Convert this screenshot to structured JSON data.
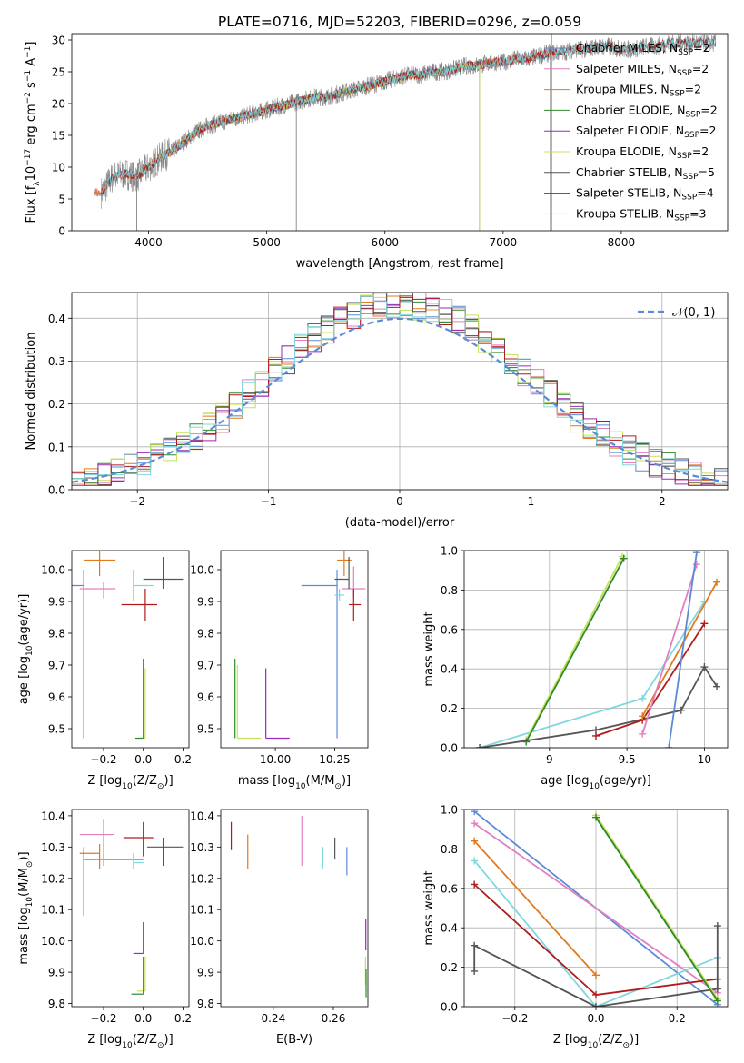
{
  "title": "PLATE=0716, MJD=52203, FIBERID=0296, z=0.059",
  "colors": {
    "chabrier_miles": "#5b8bd8",
    "salpeter_miles": "#e27fc0",
    "kroupa_miles": "#e07a1f",
    "chabrier_elodie": "#2d8a2d",
    "salpeter_elodie": "#9a2ab8",
    "kroupa_elodie": "#c8e05a",
    "chabrier_stelib": "#555555",
    "salpeter_stelib": "#b01c1c",
    "kroupa_stelib": "#7fd8de",
    "normal_curve": "#5b8bd8",
    "data_spectrum": "#888888"
  },
  "chart_data": [
    {
      "id": "spectrum",
      "type": "line",
      "xlabel": "wavelength [Angstrom, rest frame]",
      "ylabel_parts": [
        "Flux [f",
        "λ",
        "10",
        "−17",
        " erg cm",
        "−2",
        " s",
        "−1",
        " A",
        "−1",
        "]"
      ],
      "xlim": [
        3350,
        8900
      ],
      "ylim": [
        0,
        31
      ],
      "xticks": [
        4000,
        5000,
        6000,
        7000,
        8000
      ],
      "yticks": [
        0,
        5,
        10,
        15,
        20,
        25,
        30
      ],
      "continuum_x": [
        3600,
        3700,
        3800,
        3900,
        4000,
        4100,
        4200,
        4300,
        4400,
        4500,
        4600,
        4700,
        4800,
        4900,
        5000,
        5100,
        5200,
        5300,
        5400,
        5500,
        5600,
        5700,
        5800,
        5900,
        6000,
        6100,
        6200,
        6300,
        6400,
        6500,
        6600,
        6700,
        6800,
        6900,
        7000,
        7100,
        7200,
        7300,
        7400,
        7500,
        7600,
        7700,
        7800,
        7900,
        8000,
        8100,
        8200,
        8300,
        8400,
        8500,
        8600,
        8700,
        8800
      ],
      "continuum_y": [
        6.0,
        8.5,
        9.0,
        8.5,
        10.0,
        11.5,
        12.5,
        14.0,
        15.5,
        16.5,
        17.0,
        17.5,
        18.0,
        18.5,
        19.0,
        19.5,
        20.0,
        20.5,
        21.0,
        21.0,
        21.5,
        22.0,
        22.5,
        23.0,
        23.5,
        24.0,
        24.5,
        24.5,
        25.0,
        25.0,
        25.5,
        26.0,
        26.0,
        26.5,
        26.5,
        27.0,
        27.0,
        27.5,
        28.0,
        28.0,
        28.5,
        28.5,
        29.0,
        29.0,
        28.5,
        28.5,
        29.0,
        29.0,
        29.5,
        29.5,
        29.5,
        29.5,
        29.5
      ],
      "legend": [
        {
          "key": "chabrier_miles",
          "label": "Chabrier MILES, N",
          "sub": "SSP",
          "rest": "=2"
        },
        {
          "key": "salpeter_miles",
          "label": "Salpeter MILES, N",
          "sub": "SSP",
          "rest": "=2"
        },
        {
          "key": "kroupa_miles",
          "label": "Kroupa MILES, N",
          "sub": "SSP",
          "rest": "=2"
        },
        {
          "key": "chabrier_elodie",
          "label": "Chabrier ELODIE, N",
          "sub": "SSP",
          "rest": "=2"
        },
        {
          "key": "salpeter_elodie",
          "label": "Salpeter ELODIE, N",
          "sub": "SSP",
          "rest": "=2"
        },
        {
          "key": "kroupa_elodie",
          "label": "Kroupa ELODIE, N",
          "sub": "SSP",
          "rest": "=2"
        },
        {
          "key": "chabrier_stelib",
          "label": "Chabrier STELIB, N",
          "sub": "SSP",
          "rest": "=5"
        },
        {
          "key": "salpeter_stelib",
          "label": "Salpeter STELIB, N",
          "sub": "SSP",
          "rest": "=4"
        },
        {
          "key": "kroupa_stelib",
          "label": "Kroupa STELIB, N",
          "sub": "SSP",
          "rest": "=3"
        }
      ]
    },
    {
      "id": "residuals",
      "type": "histogram",
      "xlabel": "(data-model)/error",
      "ylabel": "Normed distribution",
      "xlim": [
        -2.5,
        2.5
      ],
      "ylim": [
        0,
        0.46
      ],
      "xticks": [
        -2,
        -1,
        0,
        1,
        2
      ],
      "yticks": [
        0.0,
        0.1,
        0.2,
        0.3,
        0.4
      ],
      "legend_label": "𝒩(0, 1)",
      "grid": true
    },
    {
      "id": "z_age",
      "type": "errorbar",
      "xlabel_parts": [
        "Z [log",
        "10",
        "(Z/Z",
        "⊙",
        ")]"
      ],
      "ylabel_parts": [
        "age  [log",
        "10",
        "(age/yr)]"
      ],
      "xlim": [
        -0.36,
        0.23
      ],
      "ylim": [
        9.44,
        10.06
      ],
      "xticks": [
        -0.2,
        0.0,
        0.2
      ],
      "xticklabels": [
        "−0.2",
        "0.0",
        "0.2"
      ],
      "yticks": [
        9.5,
        9.6,
        9.7,
        9.8,
        9.9,
        10.0
      ],
      "points": [
        {
          "key": "chabrier_miles",
          "x": -0.3,
          "y": 9.95,
          "xerr": [
            0.3,
            0.0
          ],
          "yerr": [
            0.48,
            0.05
          ]
        },
        {
          "key": "kroupa_miles",
          "x": -0.22,
          "y": 10.03,
          "xerr": [
            0.08,
            0.08
          ],
          "yerr": [
            0.05,
            0.03
          ]
        },
        {
          "key": "salpeter_miles",
          "x": -0.2,
          "y": 9.94,
          "xerr": [
            0.12,
            0.06
          ],
          "yerr": [
            0.03,
            0.02
          ]
        },
        {
          "key": "kroupa_stelib",
          "x": -0.05,
          "y": 9.95,
          "xerr": [
            0.0,
            0.1
          ],
          "yerr": [
            0.05,
            0.05
          ]
        },
        {
          "key": "salpeter_stelib",
          "x": 0.01,
          "y": 9.89,
          "xerr": [
            0.12,
            0.06
          ],
          "yerr": [
            0.05,
            0.05
          ]
        },
        {
          "key": "chabrier_stelib",
          "x": 0.1,
          "y": 9.97,
          "xerr": [
            0.1,
            0.1
          ],
          "yerr": [
            0.03,
            0.07
          ]
        },
        {
          "key": "kroupa_elodie",
          "x": 0.01,
          "y": 9.47,
          "xerr": [
            0.04,
            0.0
          ],
          "yerr": [
            0.0,
            0.22
          ]
        },
        {
          "key": "chabrier_elodie",
          "x": 0.0,
          "y": 9.47,
          "xerr": [
            0.04,
            0.0
          ],
          "yerr": [
            0.0,
            0.25
          ]
        }
      ]
    },
    {
      "id": "mass_age",
      "type": "errorbar",
      "xlabel_parts": [
        "mass [log",
        "10",
        "(M/M",
        "⊙",
        ")]"
      ],
      "xlim": [
        9.77,
        10.39
      ],
      "ylim": [
        9.44,
        10.06
      ],
      "xticks": [
        10.0,
        10.25
      ],
      "xticklabels": [
        "10.00",
        "10.25"
      ],
      "yticks": [
        9.5,
        9.6,
        9.7,
        9.8,
        9.9,
        10.0
      ],
      "points": [
        {
          "key": "chabrier_miles",
          "x": 10.26,
          "y": 9.95,
          "xerr": [
            0.15,
            0.0
          ],
          "yerr": [
            0.48,
            0.05
          ]
        },
        {
          "key": "kroupa_miles",
          "x": 10.29,
          "y": 10.03,
          "xerr": [
            0.03,
            0.03
          ],
          "yerr": [
            0.05,
            0.03
          ]
        },
        {
          "key": "salpeter_miles",
          "x": 10.33,
          "y": 9.94,
          "xerr": [
            0.05,
            0.05
          ],
          "yerr": [
            0.03,
            0.07
          ]
        },
        {
          "key": "kroupa_stelib",
          "x": 10.27,
          "y": 9.92,
          "xerr": [
            0.02,
            0.02
          ],
          "yerr": [
            0.02,
            0.02
          ]
        },
        {
          "key": "salpeter_stelib",
          "x": 10.33,
          "y": 9.89,
          "xerr": [
            0.02,
            0.03
          ],
          "yerr": [
            0.05,
            0.05
          ]
        },
        {
          "key": "chabrier_stelib",
          "x": 10.31,
          "y": 9.97,
          "xerr": [
            0.06,
            0.0
          ],
          "yerr": [
            0.03,
            0.07
          ]
        },
        {
          "key": "salpeter_elodie",
          "x": 9.96,
          "y": 9.47,
          "xerr": [
            0.0,
            0.1
          ],
          "yerr": [
            0.0,
            0.22
          ]
        },
        {
          "key": "kroupa_elodie",
          "x": 9.84,
          "y": 9.47,
          "xerr": [
            0.0,
            0.1
          ],
          "yerr": [
            0.0,
            0.23
          ]
        },
        {
          "key": "chabrier_elodie",
          "x": 9.83,
          "y": 9.47,
          "xerr": [
            0.0,
            0.0
          ],
          "yerr": [
            0.0,
            0.25
          ]
        }
      ]
    },
    {
      "id": "age_weight",
      "type": "line",
      "xlabel_parts": [
        "age  [log",
        "10",
        "(age/yr)]"
      ],
      "ylabel": "mass weight",
      "xlim": [
        8.45,
        10.15
      ],
      "ylim": [
        0,
        1.0
      ],
      "xticks": [
        9.0,
        9.5,
        10.0
      ],
      "yticks": [
        0.0,
        0.2,
        0.4,
        0.6,
        0.8,
        1.0
      ],
      "grid": true,
      "series": [
        {
          "key": "kroupa_stelib",
          "x": [
            8.55,
            9.6,
            10.0
          ],
          "y": [
            0.0,
            0.25,
            0.74
          ]
        },
        {
          "key": "kroupa_elodie",
          "x": [
            8.85,
            9.47
          ],
          "y": [
            0.04,
            0.97
          ]
        },
        {
          "key": "chabrier_elodie",
          "x": [
            8.85,
            9.48
          ],
          "y": [
            0.03,
            0.96
          ]
        },
        {
          "key": "chabrier_stelib",
          "x": [
            8.55,
            9.3,
            9.85,
            10.0,
            10.08
          ],
          "y": [
            0.0,
            0.09,
            0.19,
            0.41,
            0.31
          ]
        },
        {
          "key": "salpeter_stelib",
          "x": [
            9.3,
            9.6,
            10.0
          ],
          "y": [
            0.06,
            0.14,
            0.63
          ]
        },
        {
          "key": "kroupa_miles",
          "x": [
            9.6,
            10.08
          ],
          "y": [
            0.16,
            0.84
          ]
        },
        {
          "key": "salpeter_miles",
          "x": [
            9.6,
            9.95
          ],
          "y": [
            0.07,
            0.93
          ]
        },
        {
          "key": "chabrier_miles",
          "x": [
            9.77,
            9.95
          ],
          "y": [
            0.0,
            0.99
          ]
        }
      ]
    },
    {
      "id": "z_mass",
      "type": "errorbar",
      "xlabel_parts": [
        "Z [log",
        "10",
        "(Z/Z",
        "⊙",
        ")]"
      ],
      "ylabel_parts": [
        "mass [log",
        "10",
        "(M/M",
        "⊙",
        ")]"
      ],
      "xlim": [
        -0.36,
        0.23
      ],
      "ylim": [
        9.79,
        10.42
      ],
      "xticks": [
        -0.2,
        0.0,
        0.2
      ],
      "xticklabels": [
        "−0.2",
        "0.0",
        "0.2"
      ],
      "yticks": [
        9.8,
        9.9,
        10.0,
        10.1,
        10.2,
        10.3,
        10.4
      ],
      "points": [
        {
          "key": "chabrier_miles",
          "x": -0.3,
          "y": 10.26,
          "xerr": [
            0.0,
            0.3
          ],
          "yerr": [
            0.18,
            0.04
          ]
        },
        {
          "key": "kroupa_miles",
          "x": -0.22,
          "y": 10.28,
          "xerr": [
            0.1,
            0.0
          ],
          "yerr": [
            0.05,
            0.03
          ]
        },
        {
          "key": "salpeter_miles",
          "x": -0.2,
          "y": 10.34,
          "xerr": [
            0.12,
            0.05
          ],
          "yerr": [
            0.1,
            0.05
          ]
        },
        {
          "key": "kroupa_stelib",
          "x": -0.05,
          "y": 10.25,
          "xerr": [
            0.0,
            0.05
          ],
          "yerr": [
            0.02,
            0.03
          ]
        },
        {
          "key": "salpeter_stelib",
          "x": 0.0,
          "y": 10.33,
          "xerr": [
            0.1,
            0.05
          ],
          "yerr": [
            0.06,
            0.05
          ]
        },
        {
          "key": "chabrier_stelib",
          "x": 0.1,
          "y": 10.3,
          "xerr": [
            0.08,
            0.1
          ],
          "yerr": [
            0.06,
            0.03
          ]
        },
        {
          "key": "salpeter_elodie",
          "x": 0.0,
          "y": 9.96,
          "xerr": [
            0.05,
            0.0
          ],
          "yerr": [
            0.0,
            0.1
          ]
        },
        {
          "key": "kroupa_elodie",
          "x": 0.01,
          "y": 9.84,
          "xerr": [
            0.04,
            0.0
          ],
          "yerr": [
            0.0,
            0.11
          ]
        },
        {
          "key": "chabrier_elodie",
          "x": 0.0,
          "y": 9.83,
          "xerr": [
            0.06,
            0.0
          ],
          "yerr": [
            0.0,
            0.12
          ]
        }
      ]
    },
    {
      "id": "ebv_mass",
      "type": "errorbar",
      "xlabel": "E(B-V)",
      "xlim": [
        0.2225,
        0.2715
      ],
      "ylim": [
        9.79,
        10.42
      ],
      "xticks": [
        0.24,
        0.26
      ],
      "xticklabels": [
        "0.24",
        "0.26"
      ],
      "yticks": [
        9.8,
        9.9,
        10.0,
        10.1,
        10.2,
        10.3,
        10.4
      ],
      "points": [
        {
          "key": "salpeter_stelib",
          "x": 0.226,
          "y": 10.33,
          "xerr": [
            0,
            0
          ],
          "yerr": [
            0.04,
            0.05
          ]
        },
        {
          "key": "kroupa_miles",
          "x": 0.2315,
          "y": 10.28,
          "xerr": [
            0,
            0
          ],
          "yerr": [
            0.05,
            0.06
          ]
        },
        {
          "key": "salpeter_miles",
          "x": 0.2495,
          "y": 10.32,
          "xerr": [
            0,
            0
          ],
          "yerr": [
            0.08,
            0.08
          ]
        },
        {
          "key": "kroupa_stelib",
          "x": 0.2565,
          "y": 10.27,
          "xerr": [
            0,
            0
          ],
          "yerr": [
            0.04,
            0.03
          ]
        },
        {
          "key": "chabrier_stelib",
          "x": 0.2605,
          "y": 10.3,
          "xerr": [
            0,
            0
          ],
          "yerr": [
            0.04,
            0.03
          ]
        },
        {
          "key": "chabrier_miles",
          "x": 0.2645,
          "y": 10.25,
          "xerr": [
            0,
            0
          ],
          "yerr": [
            0.04,
            0.05
          ]
        },
        {
          "key": "salpeter_elodie",
          "x": 0.2708,
          "y": 10.02,
          "xerr": [
            0,
            0
          ],
          "yerr": [
            0.05,
            0.05
          ]
        },
        {
          "key": "kroupa_elodie",
          "x": 0.2707,
          "y": 9.9,
          "xerr": [
            0,
            0
          ],
          "yerr": [
            0.04,
            0.05
          ]
        },
        {
          "key": "chabrier_elodie",
          "x": 0.2709,
          "y": 9.86,
          "xerr": [
            0,
            0
          ],
          "yerr": [
            0.04,
            0.05
          ]
        }
      ]
    },
    {
      "id": "z_weight",
      "type": "line",
      "xlabel_parts": [
        "Z [log",
        "10",
        "(Z/Z",
        "⊙",
        ")]"
      ],
      "ylabel": "mass weight",
      "xlim": [
        -0.325,
        0.325
      ],
      "ylim": [
        0,
        1.0
      ],
      "xticks": [
        -0.2,
        0.0,
        0.2
      ],
      "xticklabels": [
        "−0.2",
        "0.0",
        "0.2"
      ],
      "yticks": [
        0.0,
        0.2,
        0.4,
        0.6,
        0.8,
        1.0
      ],
      "grid": true,
      "series": [
        {
          "key": "chabrier_miles",
          "x": [
            -0.3,
            0.3
          ],
          "y": [
            0.99,
            0.01
          ]
        },
        {
          "key": "salpeter_miles",
          "x": [
            -0.3,
            0.3
          ],
          "y": [
            0.93,
            0.07
          ]
        },
        {
          "key": "kroupa_miles",
          "x": [
            -0.3,
            0.0
          ],
          "y": [
            0.84,
            0.16
          ]
        },
        {
          "key": "kroupa_stelib",
          "x": [
            -0.3,
            0.0,
            0.3
          ],
          "y": [
            0.74,
            0.0,
            0.25
          ]
        },
        {
          "key": "salpeter_stelib",
          "x": [
            -0.3,
            0.0,
            0.3
          ],
          "y": [
            0.62,
            0.06,
            0.14
          ]
        },
        {
          "key": "chabrier_stelib",
          "x": [
            -0.3,
            -0.3,
            0.0,
            0.3,
            0.3
          ],
          "y": [
            0.18,
            0.31,
            0.0,
            0.09,
            0.41
          ]
        },
        {
          "key": "kroupa_elodie",
          "x": [
            0.0,
            0.3
          ],
          "y": [
            0.97,
            0.04
          ]
        },
        {
          "key": "chabrier_elodie",
          "x": [
            0.0,
            0.3
          ],
          "y": [
            0.96,
            0.03
          ]
        }
      ]
    }
  ]
}
